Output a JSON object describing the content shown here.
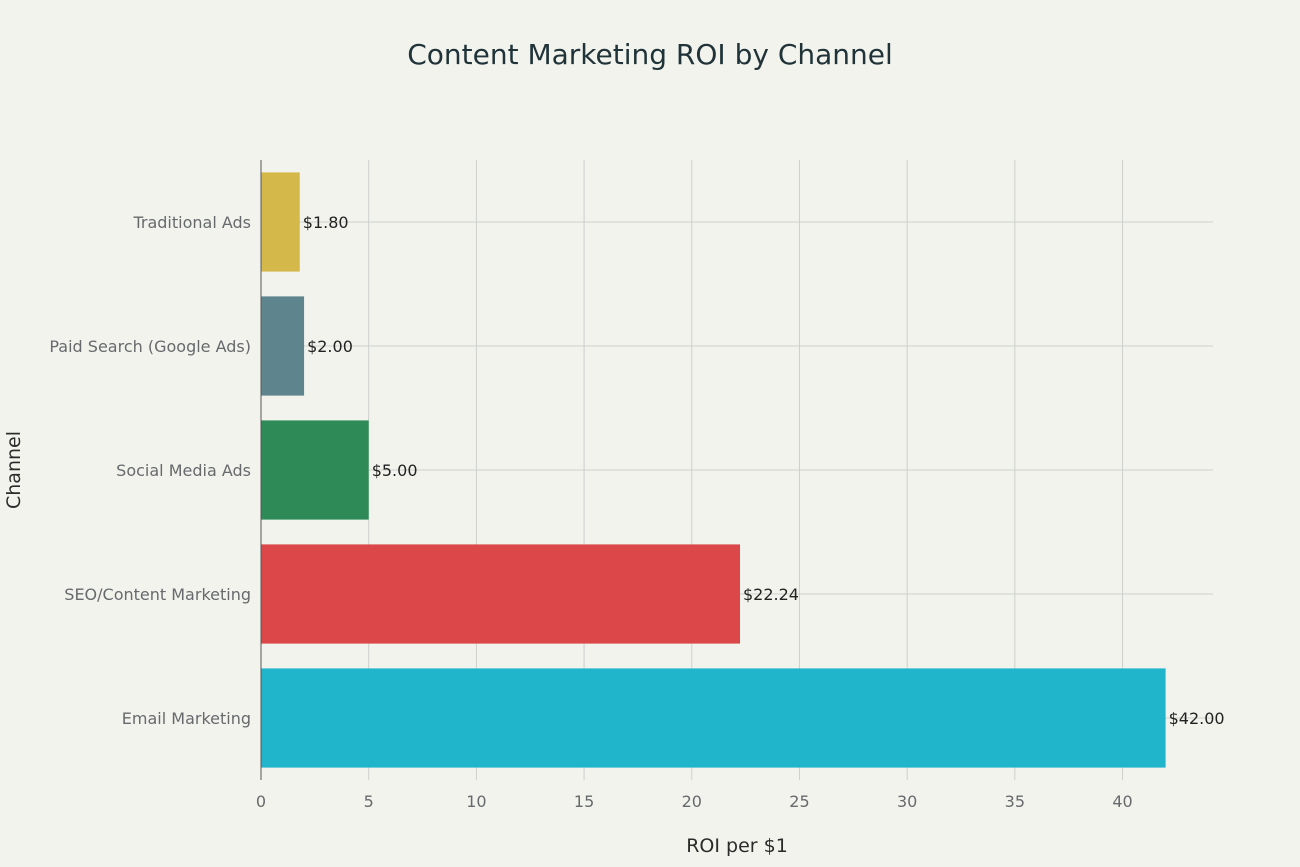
{
  "chart_data": {
    "type": "bar",
    "orientation": "horizontal",
    "title": "Content Marketing ROI by Channel",
    "xlabel": "ROI per $1",
    "ylabel": "Channel",
    "xlim": [
      0,
      44.2
    ],
    "xticks": [
      0,
      5,
      10,
      15,
      20,
      25,
      30,
      35,
      40
    ],
    "grid": true,
    "legend": "none",
    "categories": [
      "Email Marketing",
      "SEO/Content Marketing",
      "Social Media Ads",
      "Paid Search (Google Ads)",
      "Traditional Ads"
    ],
    "values": [
      42.0,
      22.24,
      5.0,
      2.0,
      1.8
    ],
    "data_labels": [
      "$42.00",
      "$22.24",
      "$5.00",
      "$2.00",
      "$1.80"
    ],
    "colors": [
      "#21b5cc",
      "#dc4749",
      "#2e8b57",
      "#5e858e",
      "#d4b94a"
    ]
  }
}
